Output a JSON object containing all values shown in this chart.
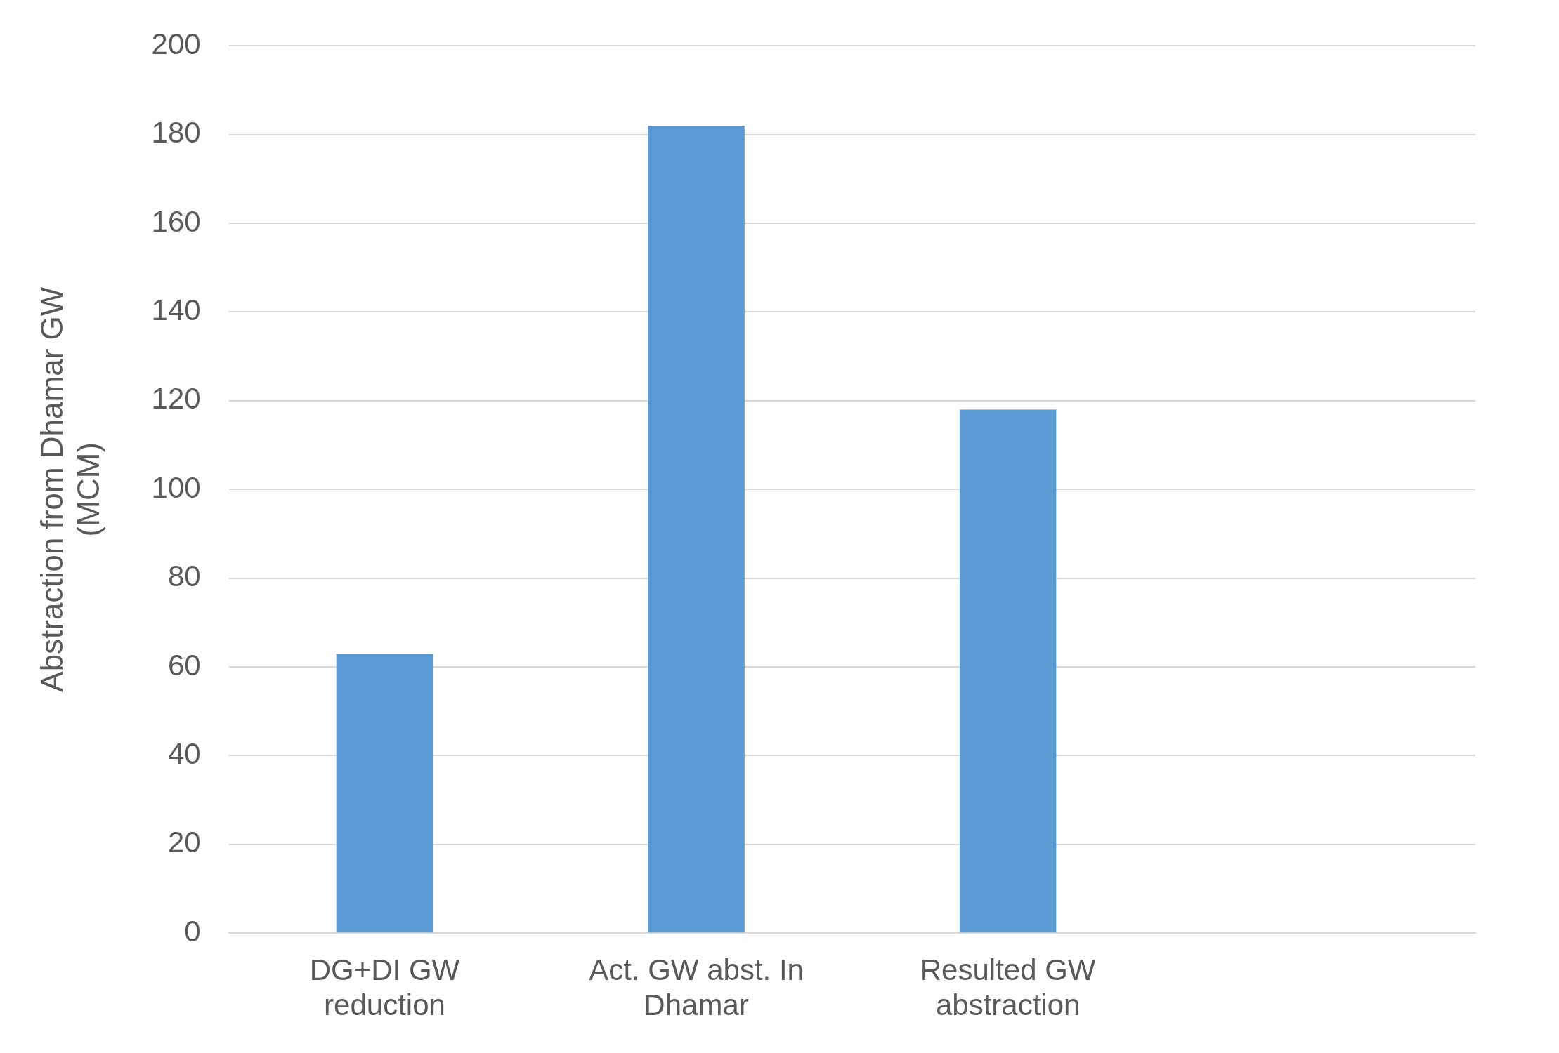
{
  "chart_data": {
    "type": "bar",
    "ylabel": "Abstraction from Dhamar GW (MCM)",
    "categories": [
      "DG+DI GW reduction",
      "Act. GW abst. In Dhamar",
      "Resulted GW abstraction",
      null
    ],
    "values": [
      63,
      182,
      118,
      null
    ],
    "color": "#5b9bd5",
    "ylim": [
      0,
      200
    ],
    "yticks": [
      0,
      20,
      40,
      60,
      80,
      100,
      120,
      140,
      160,
      180,
      200
    ],
    "grid": "y",
    "legend": false
  }
}
